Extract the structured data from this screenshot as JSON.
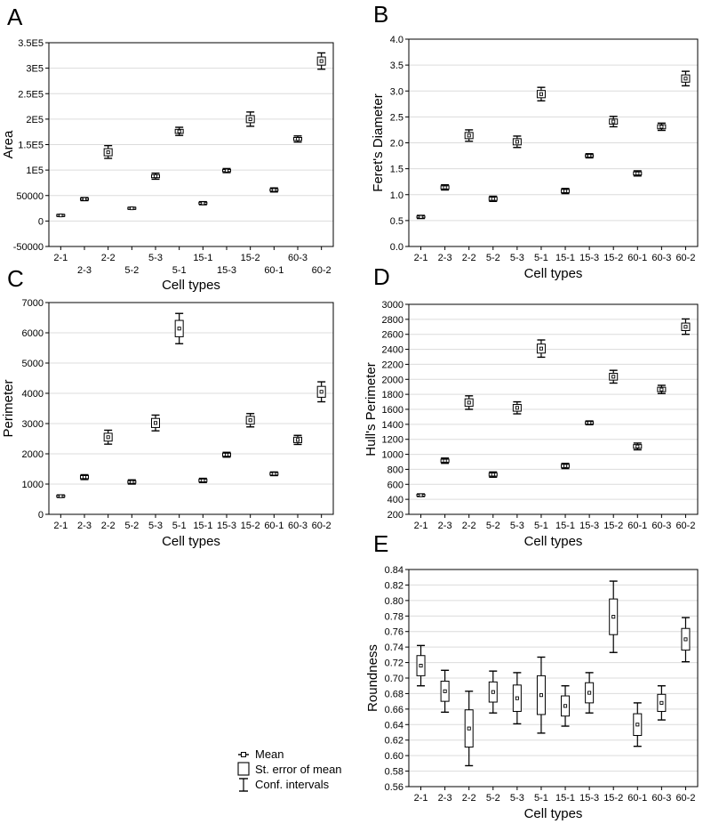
{
  "chart_data": [
    {
      "panel": "A",
      "type": "box",
      "xlabel": "Cell types",
      "ylabel": "Area",
      "ylim": [
        -50000,
        350000
      ],
      "categories": [
        "2-1",
        "2-3",
        "2-2",
        "5-2",
        "5-3",
        "5-1",
        "15-1",
        "15-3",
        "15-2",
        "60-1",
        "60-3",
        "60-2"
      ],
      "ytick_values": [
        -50000,
        0,
        50000,
        100000,
        150000,
        200000,
        250000,
        300000,
        350000
      ],
      "ytick_labels": [
        "-50000",
        "0",
        "50000",
        "1E5",
        "1.5E5",
        "2E5",
        "2.5E5",
        "3E5",
        "3.5E5"
      ],
      "mean": [
        11000,
        43000,
        135000,
        25000,
        88000,
        176000,
        35000,
        99000,
        200000,
        61000,
        161000,
        314000
      ],
      "se_low": [
        10000,
        41500,
        128000,
        24000,
        85000,
        172000,
        33500,
        97000,
        193000,
        59000,
        158000,
        306000
      ],
      "se_high": [
        12000,
        44500,
        142000,
        26000,
        91000,
        180000,
        36500,
        101000,
        207000,
        63000,
        164000,
        322000
      ],
      "ci_low": [
        9000,
        40000,
        123000,
        23000,
        82000,
        168000,
        32000,
        95000,
        186000,
        57000,
        155000,
        298000
      ],
      "ci_high": [
        13000,
        46000,
        148000,
        27000,
        94000,
        184000,
        38000,
        103000,
        214000,
        65000,
        167000,
        330000
      ],
      "grid": true
    },
    {
      "panel": "B",
      "type": "box",
      "xlabel": "Cell types",
      "ylabel": "Feret's Diameter",
      "ylim": [
        0,
        4
      ],
      "categories": [
        "2-1",
        "2-3",
        "2-2",
        "5-2",
        "5-3",
        "5-1",
        "15-1",
        "15-3",
        "15-2",
        "60-1",
        "60-3",
        "60-2"
      ],
      "ytick_values": [
        0,
        0.5,
        1,
        1.5,
        2,
        2.5,
        3,
        3.5,
        4
      ],
      "ytick_labels": [
        "0.0",
        "0.5",
        "1.0",
        "1.5",
        "2.0",
        "2.5",
        "3.0",
        "3.5",
        "4.0"
      ],
      "mean": [
        0.57,
        1.14,
        2.14,
        0.92,
        2.02,
        2.94,
        1.07,
        1.75,
        2.41,
        1.41,
        2.31,
        3.24
      ],
      "se_low": [
        0.555,
        1.11,
        2.08,
        0.89,
        1.96,
        2.87,
        1.04,
        1.73,
        2.36,
        1.38,
        2.27,
        3.17
      ],
      "se_high": [
        0.585,
        1.17,
        2.2,
        0.95,
        2.08,
        3.01,
        1.1,
        1.77,
        2.46,
        1.44,
        2.35,
        3.31
      ],
      "ci_low": [
        0.54,
        1.09,
        2.03,
        0.87,
        1.91,
        2.81,
        1.02,
        1.71,
        2.31,
        1.36,
        2.24,
        3.1
      ],
      "ci_high": [
        0.6,
        1.19,
        2.25,
        0.97,
        2.13,
        3.07,
        1.12,
        1.79,
        2.51,
        1.46,
        2.38,
        3.38
      ],
      "grid": true
    },
    {
      "panel": "C",
      "type": "box",
      "xlabel": "Cell types",
      "ylabel": "Perimeter",
      "ylim": [
        0,
        7000
      ],
      "categories": [
        "2-1",
        "2-3",
        "2-2",
        "5-2",
        "5-3",
        "5-1",
        "15-1",
        "15-3",
        "15-2",
        "60-1",
        "60-3",
        "60-2"
      ],
      "ytick_values": [
        0,
        1000,
        2000,
        3000,
        4000,
        5000,
        6000,
        7000
      ],
      "ytick_labels": [
        "0",
        "1000",
        "2000",
        "3000",
        "4000",
        "5000",
        "6000",
        "7000"
      ],
      "mean": [
        600,
        1230,
        2550,
        1070,
        3020,
        6140,
        1120,
        1970,
        3110,
        1340,
        2460,
        4050
      ],
      "se_low": [
        575,
        1180,
        2420,
        1030,
        2870,
        5870,
        1080,
        1920,
        2980,
        1300,
        2370,
        3870
      ],
      "se_high": [
        625,
        1280,
        2680,
        1110,
        3170,
        6410,
        1160,
        2020,
        3240,
        1380,
        2550,
        4230
      ],
      "ci_low": [
        560,
        1150,
        2320,
        1000,
        2760,
        5640,
        1050,
        1890,
        2890,
        1280,
        2310,
        3720
      ],
      "ci_high": [
        640,
        1310,
        2780,
        1140,
        3280,
        6640,
        1190,
        2050,
        3330,
        1400,
        2610,
        4380
      ],
      "grid": true
    },
    {
      "panel": "D",
      "type": "box",
      "xlabel": "Cell types",
      "ylabel": "Hull's Perimeter",
      "ylim": [
        200,
        3000
      ],
      "categories": [
        "2-1",
        "2-3",
        "2-2",
        "5-2",
        "5-3",
        "5-1",
        "15-1",
        "15-3",
        "15-2",
        "60-1",
        "60-3",
        "60-2"
      ],
      "ytick_values": [
        200,
        400,
        600,
        800,
        1000,
        1200,
        1400,
        1600,
        1800,
        2000,
        2200,
        2400,
        2600,
        2800,
        3000
      ],
      "ytick_labels": [
        "200",
        "400",
        "600",
        "800",
        "1000",
        "1200",
        "1400",
        "1600",
        "1800",
        "2000",
        "2200",
        "2400",
        "2600",
        "2800",
        "3000"
      ],
      "mean": [
        455,
        915,
        1690,
        730,
        1620,
        2410,
        845,
        1420,
        2035,
        1105,
        1865,
        2700
      ],
      "se_low": [
        445,
        895,
        1640,
        710,
        1575,
        2350,
        825,
        1405,
        1990,
        1080,
        1835,
        2650
      ],
      "se_high": [
        465,
        935,
        1740,
        750,
        1665,
        2470,
        865,
        1435,
        2080,
        1130,
        1895,
        2750
      ],
      "ci_low": [
        438,
        880,
        1600,
        695,
        1540,
        2295,
        810,
        1395,
        1950,
        1060,
        1810,
        2600
      ],
      "ci_high": [
        472,
        950,
        1780,
        765,
        1700,
        2525,
        880,
        1445,
        2120,
        1150,
        1920,
        2805
      ],
      "grid": true
    },
    {
      "panel": "E",
      "type": "box",
      "xlabel": "Cell types",
      "ylabel": "Roundness",
      "ylim": [
        0.56,
        0.84
      ],
      "categories": [
        "2-1",
        "2-3",
        "2-2",
        "5-2",
        "5-3",
        "5-1",
        "15-1",
        "15-3",
        "15-2",
        "60-1",
        "60-3",
        "60-2"
      ],
      "ytick_values": [
        0.56,
        0.58,
        0.6,
        0.62,
        0.64,
        0.66,
        0.68,
        0.7,
        0.72,
        0.74,
        0.76,
        0.78,
        0.8,
        0.82,
        0.84
      ],
      "ytick_labels": [
        "0.56",
        "0.58",
        "0.60",
        "0.62",
        "0.64",
        "0.66",
        "0.68",
        "0.70",
        "0.72",
        "0.74",
        "0.76",
        "0.78",
        "0.80",
        "0.82",
        "0.84"
      ],
      "mean": [
        0.716,
        0.683,
        0.635,
        0.682,
        0.674,
        0.678,
        0.664,
        0.681,
        0.779,
        0.64,
        0.668,
        0.75
      ],
      "se_low": [
        0.703,
        0.67,
        0.611,
        0.669,
        0.657,
        0.653,
        0.651,
        0.668,
        0.756,
        0.626,
        0.657,
        0.736
      ],
      "se_high": [
        0.729,
        0.696,
        0.659,
        0.695,
        0.691,
        0.703,
        0.677,
        0.694,
        0.802,
        0.654,
        0.679,
        0.764
      ],
      "ci_low": [
        0.69,
        0.656,
        0.587,
        0.655,
        0.641,
        0.629,
        0.638,
        0.655,
        0.733,
        0.612,
        0.646,
        0.721
      ],
      "ci_high": [
        0.742,
        0.71,
        0.683,
        0.709,
        0.707,
        0.727,
        0.69,
        0.707,
        0.825,
        0.668,
        0.69,
        0.778
      ],
      "grid": true
    }
  ],
  "legend": {
    "mean_label": "Mean",
    "se_label": "St. error of mean",
    "ci_label": "Conf. intervals"
  }
}
